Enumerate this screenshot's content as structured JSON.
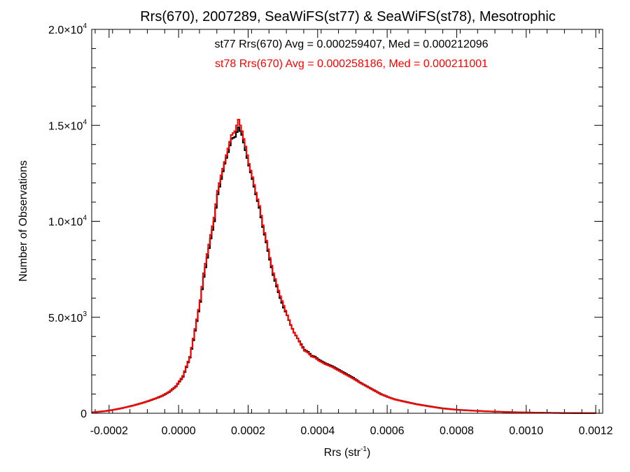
{
  "chart_data": {
    "type": "line",
    "title": "Rrs(670), 2007289, SeaWiFS(st77) & SeaWiFS(st78), Mesotrophic",
    "xlabel_main": "Rrs (str",
    "xlabel_sup": "-1",
    "xlabel_close": ")",
    "ylabel": "Number of Observations",
    "xlim": [
      -0.00025,
      0.00122
    ],
    "ylim": [
      0,
      20000
    ],
    "x_ticks": [
      {
        "value": -0.0002,
        "label": "-0.0002"
      },
      {
        "value": 0.0,
        "label": "0.0000"
      },
      {
        "value": 0.0002,
        "label": "0.0002"
      },
      {
        "value": 0.0004,
        "label": "0.0004"
      },
      {
        "value": 0.0006,
        "label": "0.0006"
      },
      {
        "value": 0.0008,
        "label": "0.0008"
      },
      {
        "value": 0.001,
        "label": "0.0010"
      },
      {
        "value": 0.0012,
        "label": "0.0012"
      }
    ],
    "y_ticks": [
      {
        "value": 0,
        "mant": "0",
        "exp": ""
      },
      {
        "value": 5000,
        "mant": "5.0×10",
        "exp": "3"
      },
      {
        "value": 10000,
        "mant": "1.0×10",
        "exp": "4"
      },
      {
        "value": 15000,
        "mant": "1.5×10",
        "exp": "4"
      },
      {
        "value": 20000,
        "mant": "2.0×10",
        "exp": "4"
      }
    ],
    "annotations": [
      {
        "text": "st77 Rrs(670) Avg = 0.000259407, Med = 0.000212096",
        "color": "#000000"
      },
      {
        "text": "st78 Rrs(670) Avg = 0.000258186, Med = 0.000211001",
        "color": "#ff0000"
      }
    ],
    "series": [
      {
        "name": "st77",
        "color": "#000000",
        "x": [
          -0.00025,
          -0.00023,
          -0.00021,
          -0.00019,
          -0.00017,
          -0.00015,
          -0.00013,
          -0.00011,
          -9e-05,
          -7e-05,
          -5e-05,
          -3e-05,
          -1e-05,
          1e-05,
          2e-05,
          3e-05,
          4e-05,
          5e-05,
          6e-05,
          7e-05,
          8e-05,
          9e-05,
          0.0001,
          0.00011,
          0.00012,
          0.00013,
          0.00014,
          0.00015,
          0.00016,
          0.00017,
          0.00018,
          0.00019,
          0.0002,
          0.00021,
          0.00022,
          0.00023,
          0.00024,
          0.00025,
          0.00026,
          0.00027,
          0.00028,
          0.00029,
          0.0003,
          0.00031,
          0.00032,
          0.00033,
          0.00034,
          0.00035,
          0.00036,
          0.00037,
          0.00038,
          0.00039,
          0.0004,
          0.00042,
          0.00044,
          0.00046,
          0.00048,
          0.0005,
          0.00052,
          0.00054,
          0.00056,
          0.00058,
          0.0006,
          0.00062,
          0.00064,
          0.00066,
          0.00068,
          0.0007,
          0.00072,
          0.00074,
          0.00076,
          0.0008,
          0.00085,
          0.0009,
          0.00095,
          0.001,
          0.00105,
          0.0011,
          0.00115,
          0.0012
        ],
        "y": [
          50,
          80,
          120,
          180,
          250,
          330,
          420,
          520,
          630,
          760,
          900,
          1100,
          1400,
          1900,
          2400,
          2900,
          3800,
          4800,
          5800,
          7100,
          8100,
          9100,
          10000,
          11400,
          12200,
          13000,
          13600,
          14300,
          14400,
          14900,
          14500,
          13700,
          12900,
          12200,
          11400,
          10700,
          9700,
          8900,
          8000,
          7200,
          6600,
          6000,
          5500,
          5100,
          4600,
          4200,
          3900,
          3600,
          3300,
          3200,
          3000,
          2950,
          2800,
          2600,
          2450,
          2250,
          2050,
          1850,
          1600,
          1400,
          1200,
          1000,
          850,
          720,
          640,
          560,
          480,
          420,
          360,
          300,
          250,
          180,
          130,
          90,
          60,
          40,
          25,
          15,
          8,
          5
        ]
      },
      {
        "name": "st78",
        "color": "#ff0000",
        "x": [
          -0.00025,
          -0.00023,
          -0.00021,
          -0.00019,
          -0.00017,
          -0.00015,
          -0.00013,
          -0.00011,
          -9e-05,
          -7e-05,
          -5e-05,
          -3e-05,
          -1e-05,
          1e-05,
          2e-05,
          3e-05,
          4e-05,
          5e-05,
          6e-05,
          7e-05,
          8e-05,
          9e-05,
          0.0001,
          0.00011,
          0.00012,
          0.00013,
          0.00014,
          0.00015,
          0.00016,
          0.00017,
          0.00018,
          0.00019,
          0.0002,
          0.00021,
          0.00022,
          0.00023,
          0.00024,
          0.00025,
          0.00026,
          0.00027,
          0.00028,
          0.00029,
          0.0003,
          0.00031,
          0.00032,
          0.00033,
          0.00034,
          0.00035,
          0.00036,
          0.00037,
          0.00038,
          0.00039,
          0.0004,
          0.00042,
          0.00044,
          0.00046,
          0.00048,
          0.0005,
          0.00052,
          0.00054,
          0.00056,
          0.00058,
          0.0006,
          0.00062,
          0.00064,
          0.00066,
          0.00068,
          0.0007,
          0.00072,
          0.00074,
          0.00076,
          0.0008,
          0.00085,
          0.0009,
          0.00095,
          0.001,
          0.00105,
          0.0011,
          0.00115,
          0.0012
        ],
        "y": [
          50,
          80,
          120,
          180,
          250,
          330,
          420,
          520,
          640,
          770,
          920,
          1120,
          1420,
          1950,
          2450,
          2950,
          3900,
          4900,
          5900,
          7300,
          8300,
          9300,
          10200,
          11600,
          12400,
          13100,
          13800,
          14500,
          14700,
          15300,
          14700,
          13900,
          13000,
          12300,
          11500,
          10800,
          9800,
          9000,
          8100,
          7300,
          6700,
          6100,
          5600,
          5100,
          4600,
          4200,
          3900,
          3550,
          3250,
          3150,
          2950,
          2900,
          2750,
          2550,
          2400,
          2200,
          2000,
          1800,
          1580,
          1380,
          1180,
          980,
          840,
          710,
          630,
          550,
          470,
          410,
          350,
          290,
          240,
          175,
          125,
          88,
          58,
          38,
          24,
          14,
          8,
          5
        ]
      }
    ]
  }
}
